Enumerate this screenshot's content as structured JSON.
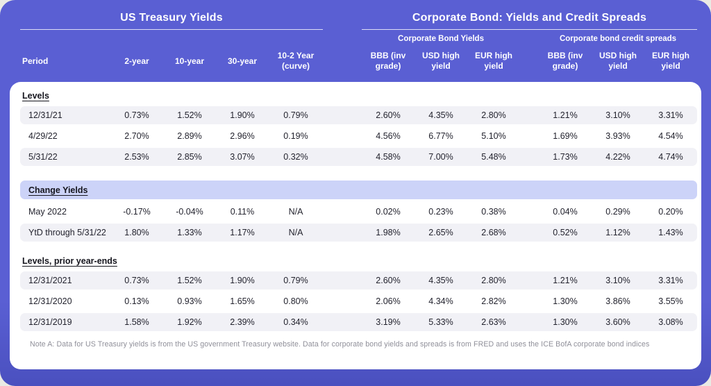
{
  "colors": {
    "panel_purple": "#5a5fd3",
    "panel_purple_dark": "#4a50bf",
    "highlight_lavender": "#ccd3f8",
    "zebra_gray": "#f1f1f6",
    "header_text": "#ffffff",
    "body_text": "#23232e",
    "note_text": "#8f8f99"
  },
  "header": {
    "left_title": "US Treasury Yields",
    "right_title": "Corporate Bond: Yields and Credit Spreads",
    "group_left": "Corporate Bond Yields",
    "group_right": "Corporate bond credit spreads",
    "columns": [
      "Period",
      "2-year",
      "10-year",
      "30-year",
      "10-2 Year (curve)",
      "BBB (inv grade)",
      "USD high yield",
      "EUR high yield",
      "BBB (inv grade)",
      "USD high yield",
      "EUR high yield"
    ]
  },
  "table": {
    "sections": [
      {
        "title": "Levels",
        "highlight": false,
        "rows": [
          {
            "period": "12/31/21",
            "shade": true,
            "values": [
              "0.73%",
              "1.52%",
              "1.90%",
              "0.79%",
              "2.60%",
              "4.35%",
              "2.80%",
              "1.21%",
              "3.10%",
              "3.31%"
            ]
          },
          {
            "period": "4/29/22",
            "shade": false,
            "values": [
              "2.70%",
              "2.89%",
              "2.96%",
              "0.19%",
              "4.56%",
              "6.77%",
              "5.10%",
              "1.69%",
              "3.93%",
              "4.54%"
            ]
          },
          {
            "period": "5/31/22",
            "shade": true,
            "values": [
              "2.53%",
              "2.85%",
              "3.07%",
              "0.32%",
              "4.58%",
              "7.00%",
              "5.48%",
              "1.73%",
              "4.22%",
              "4.74%"
            ]
          }
        ]
      },
      {
        "title": "Change Yields",
        "highlight": true,
        "rows": [
          {
            "period": "May 2022",
            "shade": false,
            "values": [
              "-0.17%",
              "-0.04%",
              "0.11%",
              "N/A",
              "0.02%",
              "0.23%",
              "0.38%",
              "0.04%",
              "0.29%",
              "0.20%"
            ]
          },
          {
            "period": "YtD through 5/31/22",
            "shade": true,
            "values": [
              "1.80%",
              "1.33%",
              "1.17%",
              "N/A",
              "1.98%",
              "2.65%",
              "2.68%",
              "0.52%",
              "1.12%",
              "1.43%"
            ]
          }
        ]
      },
      {
        "title": "Levels, prior year-ends",
        "highlight": false,
        "rows": [
          {
            "period": "12/31/2021",
            "shade": true,
            "values": [
              "0.73%",
              "1.52%",
              "1.90%",
              "0.79%",
              "2.60%",
              "4.35%",
              "2.80%",
              "1.21%",
              "3.10%",
              "3.31%"
            ]
          },
          {
            "period": "12/31/2020",
            "shade": false,
            "values": [
              "0.13%",
              "0.93%",
              "1.65%",
              "0.80%",
              "2.06%",
              "4.34%",
              "2.82%",
              "1.30%",
              "3.86%",
              "3.55%"
            ]
          },
          {
            "period": "12/31/2019",
            "shade": true,
            "values": [
              "1.58%",
              "1.92%",
              "2.39%",
              "0.34%",
              "3.19%",
              "5.33%",
              "2.63%",
              "1.30%",
              "3.60%",
              "3.08%"
            ]
          }
        ]
      }
    ]
  },
  "note": "Note A:  Data for US Treasury yields is from the US government Treasury website.  Data for corporate bond yields and spreads is from FRED and uses the ICE BofA corporate bond indices",
  "chart_data": {
    "type": "table",
    "title_left": "US Treasury Yields",
    "title_right": "Corporate Bond: Yields and Credit Spreads",
    "column_groups": [
      "US Treasury Yields",
      "Corporate Bond Yields",
      "Corporate bond credit spreads"
    ],
    "columns": [
      "Period",
      "2-year",
      "10-year",
      "30-year",
      "10-2 Year (curve)",
      "BBB (inv grade)",
      "USD high yield",
      "EUR high yield",
      "BBB (inv grade)",
      "USD high yield",
      "EUR high yield"
    ],
    "rows": [
      [
        "Levels",
        "",
        "",
        "",
        "",
        "",
        "",
        "",
        "",
        "",
        ""
      ],
      [
        "12/31/21",
        "0.73%",
        "1.52%",
        "1.90%",
        "0.79%",
        "2.60%",
        "4.35%",
        "2.80%",
        "1.21%",
        "3.10%",
        "3.31%"
      ],
      [
        "4/29/22",
        "2.70%",
        "2.89%",
        "2.96%",
        "0.19%",
        "4.56%",
        "6.77%",
        "5.10%",
        "1.69%",
        "3.93%",
        "4.54%"
      ],
      [
        "5/31/22",
        "2.53%",
        "2.85%",
        "3.07%",
        "0.32%",
        "4.58%",
        "7.00%",
        "5.48%",
        "1.73%",
        "4.22%",
        "4.74%"
      ],
      [
        "Change Yields",
        "",
        "",
        "",
        "",
        "",
        "",
        "",
        "",
        "",
        ""
      ],
      [
        "May 2022",
        "-0.17%",
        "-0.04%",
        "0.11%",
        "N/A",
        "0.02%",
        "0.23%",
        "0.38%",
        "0.04%",
        "0.29%",
        "0.20%"
      ],
      [
        "YtD through 5/31/22",
        "1.80%",
        "1.33%",
        "1.17%",
        "N/A",
        "1.98%",
        "2.65%",
        "2.68%",
        "0.52%",
        "1.12%",
        "1.43%"
      ],
      [
        "Levels, prior year-ends",
        "",
        "",
        "",
        "",
        "",
        "",
        "",
        "",
        "",
        ""
      ],
      [
        "12/31/2021",
        "0.73%",
        "1.52%",
        "1.90%",
        "0.79%",
        "2.60%",
        "4.35%",
        "2.80%",
        "1.21%",
        "3.10%",
        "3.31%"
      ],
      [
        "12/31/2020",
        "0.13%",
        "0.93%",
        "1.65%",
        "0.80%",
        "2.06%",
        "4.34%",
        "2.82%",
        "1.30%",
        "3.86%",
        "3.55%"
      ],
      [
        "12/31/2019",
        "1.58%",
        "1.92%",
        "2.39%",
        "0.34%",
        "3.19%",
        "5.33%",
        "2.63%",
        "1.30%",
        "3.60%",
        "3.08%"
      ]
    ]
  }
}
